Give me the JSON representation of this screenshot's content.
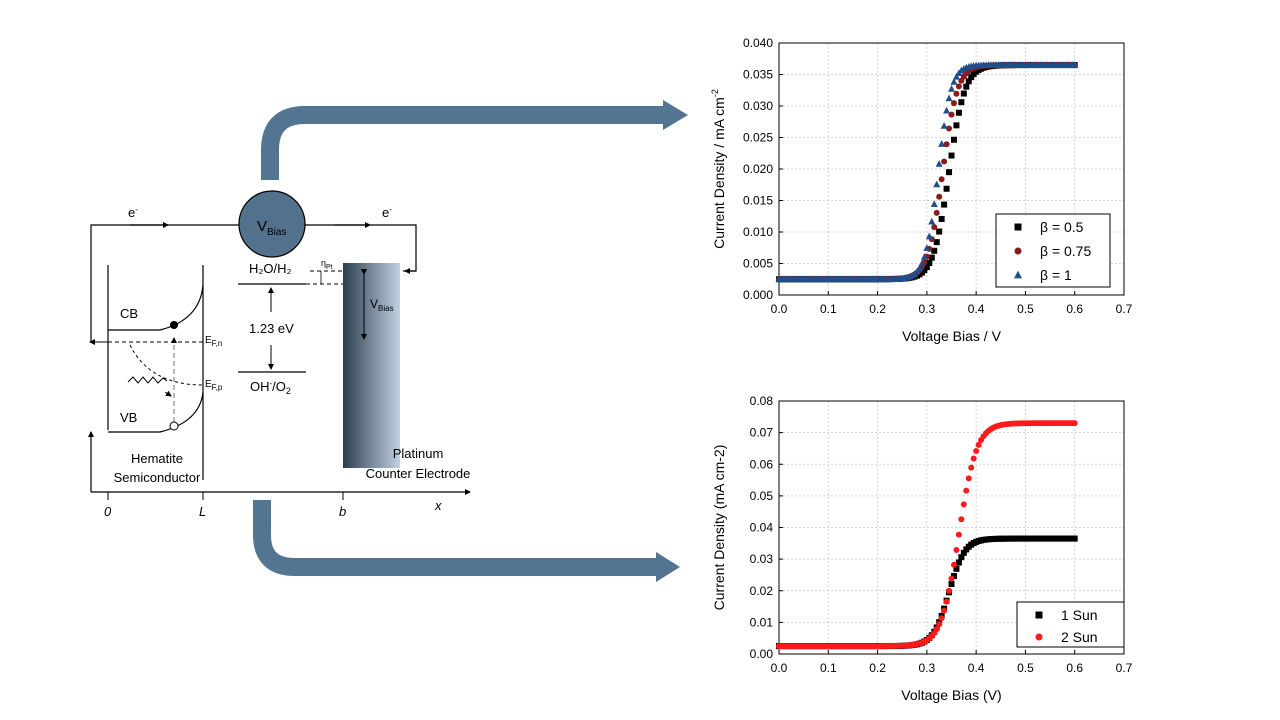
{
  "diagram": {
    "electron_left": {
      "main": "e",
      "sup": "-"
    },
    "electron_right": {
      "main": "e",
      "sup": "-"
    },
    "vbias_main": "V",
    "vbias_sub": "Bias",
    "h2o_label": "H₂O/H₂",
    "eta_main": "η",
    "eta_sub": "Pt",
    "vbias_right_main": "V",
    "vbias_right_sub": "Bias",
    "energy_gap": "1.23 eV",
    "oh_label": {
      "a": "OH",
      "b": "-",
      "c": "/O",
      "d": "2"
    },
    "cb": "CB",
    "vb": "VB",
    "efn": {
      "main": "E",
      "sub": "F,n"
    },
    "efp": {
      "main": "E",
      "sub": "F,p"
    },
    "hematite_1": "Hematite",
    "hematite_2": "Semiconductor",
    "platinum_1": "Platinum",
    "platinum_2": "Counter Electrode",
    "axis_0": "0",
    "axis_L": "L",
    "axis_b": "b",
    "axis_x": "x",
    "colors": {
      "arrow": "#537592",
      "circle": "#53708c",
      "electrode_dark": "#2c3e50",
      "electrode_light": "#c0d2e2"
    }
  },
  "chart_data": [
    {
      "type": "scatter",
      "xlabel": "Voltage Bias / V",
      "ylabel": {
        "main": "Current Density / mA cm",
        "sup": "-2"
      },
      "xlim": [
        0,
        0.7
      ],
      "ylim": [
        0,
        0.04
      ],
      "xticks": [
        "0.0",
        "0.1",
        "0.2",
        "0.3",
        "0.4",
        "0.5",
        "0.6",
        "0.7"
      ],
      "yticks": [
        "0.000",
        "0.005",
        "0.010",
        "0.015",
        "0.020",
        "0.025",
        "0.030",
        "0.035",
        "0.040"
      ],
      "grid": true,
      "legend_position": "lower-right",
      "series": [
        {
          "name": "β = 0.5",
          "marker": "square",
          "color": "#000000",
          "floor": 0.0025,
          "plateau": 0.0365,
          "midpoint": 0.345,
          "width": 0.016
        },
        {
          "name": "β = 0.75",
          "marker": "circle",
          "color": "#8b1a1a",
          "floor": 0.0025,
          "plateau": 0.0365,
          "midpoint": 0.332,
          "width": 0.015
        },
        {
          "name": "β = 1",
          "marker": "triangle",
          "color": "#1f4e8c",
          "floor": 0.0025,
          "plateau": 0.0365,
          "midpoint": 0.323,
          "width": 0.013
        }
      ]
    },
    {
      "type": "scatter",
      "xlabel": "Voltage Bias (V)",
      "ylabel": {
        "main": "Current Density (mA cm-2)",
        "sup": ""
      },
      "xlim": [
        0,
        0.7
      ],
      "ylim": [
        0,
        0.08
      ],
      "xticks": [
        "0.0",
        "0.1",
        "0.2",
        "0.3",
        "0.4",
        "0.5",
        "0.6",
        "0.7"
      ],
      "yticks": [
        "0.00",
        "0.01",
        "0.02",
        "0.03",
        "0.04",
        "0.05",
        "0.06",
        "0.07",
        "0.08"
      ],
      "grid": true,
      "legend_position": "lower-right",
      "series": [
        {
          "name": "1 Sun",
          "marker": "square",
          "color": "#000000",
          "floor": 0.0025,
          "plateau": 0.0365,
          "midpoint": 0.345,
          "width": 0.016
        },
        {
          "name": "2 Sun",
          "marker": "circle",
          "color": "#ff1a1a",
          "floor": 0.0025,
          "plateau": 0.073,
          "midpoint": 0.365,
          "width": 0.018
        }
      ]
    }
  ]
}
